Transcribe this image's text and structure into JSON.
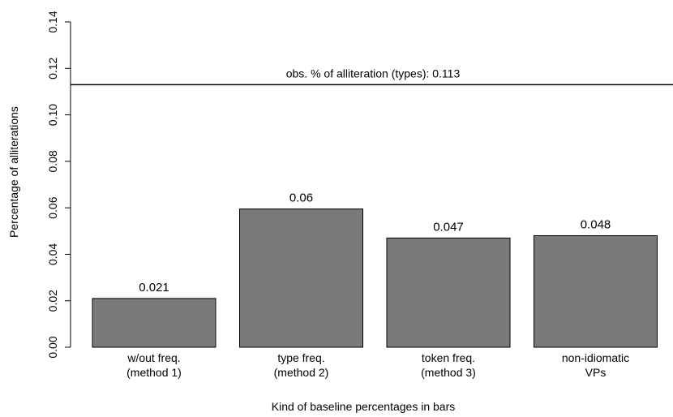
{
  "chart_data": {
    "type": "bar",
    "categories": [
      [
        "w/out freq.",
        "(method 1)"
      ],
      [
        "type freq.",
        "(method 2)"
      ],
      [
        "token freq.",
        "(method 3)"
      ],
      [
        "non-idiomatic",
        "VPs"
      ]
    ],
    "values": [
      0.021,
      0.0595,
      0.047,
      0.048
    ],
    "data_labels": [
      "0.021",
      "0.06",
      "0.047",
      "0.048"
    ],
    "xlabel": "Kind of baseline percentages in bars",
    "ylabel": "Percentage of alliterations",
    "ylim": [
      0,
      0.14
    ],
    "yticks": [
      0.0,
      0.02,
      0.04,
      0.06,
      0.08,
      0.1,
      0.12,
      0.14
    ],
    "ytick_labels": [
      "0.00",
      "0.02",
      "0.04",
      "0.06",
      "0.08",
      "0.10",
      "0.12",
      "0.14"
    ],
    "reference_line": {
      "value": 0.113,
      "label": "obs. % of alliteration (types): 0.113"
    },
    "bar_color": "#7a7a7a",
    "grid": false
  }
}
